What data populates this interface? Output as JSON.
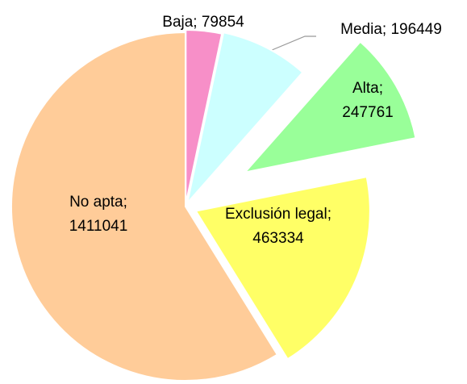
{
  "chart_data": {
    "type": "pie",
    "categories": [
      "Baja",
      "Media",
      "Alta",
      "Exclusión legal",
      "No apta"
    ],
    "values": [
      79854,
      196449,
      247761,
      463334,
      1411041
    ],
    "value_labels": [
      [
        "Baja; 79854"
      ],
      [
        "Media; 196449"
      ],
      [
        "Alta;",
        "247761"
      ],
      [
        "Exclusión legal;",
        "463334"
      ],
      [
        "No apta;",
        "1411041"
      ]
    ],
    "colors": [
      "#f78fc8",
      "#ccffff",
      "#99ff99",
      "#ffff66",
      "#ffcc99"
    ]
  }
}
